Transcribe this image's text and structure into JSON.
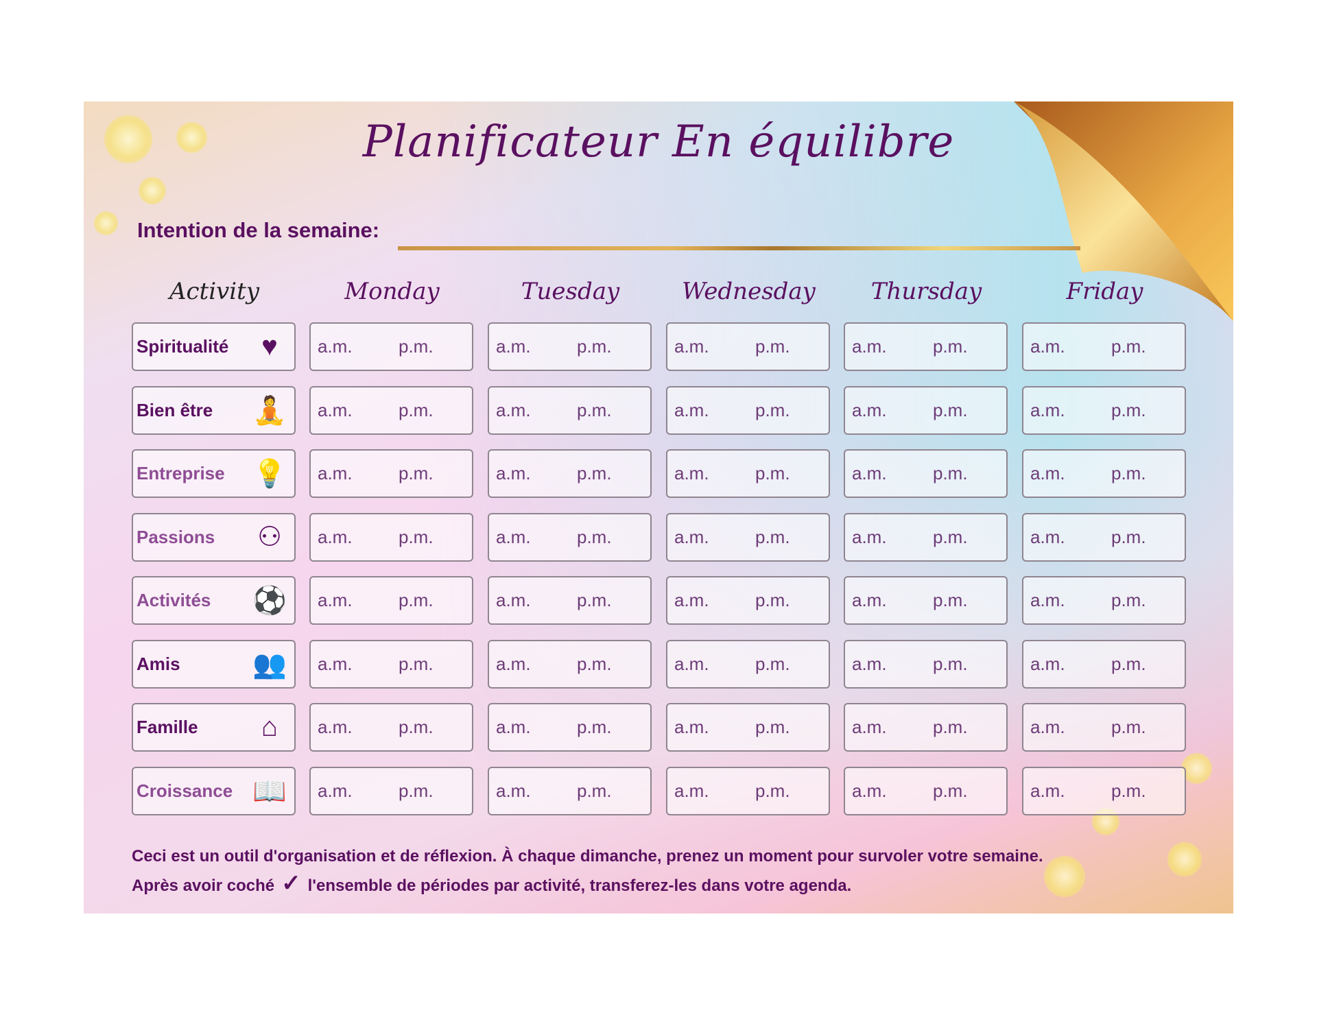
{
  "title": "Planificateur En équilibre",
  "intention_label": "Intention de la semaine:",
  "activity_header": "Activity",
  "days": [
    "Monday",
    "Tuesday",
    "Wednesday",
    "Thursday",
    "Friday"
  ],
  "am_label": "a.m.",
  "pm_label": "p.m.",
  "rows": [
    {
      "label": "Spiritualité",
      "icon": "heart-hands-icon",
      "glyph": "♥"
    },
    {
      "label": "Bien être",
      "icon": "yoga-pose-icon",
      "glyph": "🧘"
    },
    {
      "label": "Entreprise",
      "icon": "lightbulb-person-icon",
      "glyph": "💡"
    },
    {
      "label": "Passions",
      "icon": "interests-network-icon",
      "glyph": "⚇"
    },
    {
      "label": "Activités",
      "icon": "activities-circle-icon",
      "glyph": "⚽"
    },
    {
      "label": "Amis",
      "icon": "friends-group-icon",
      "glyph": "👥"
    },
    {
      "label": "Famille",
      "icon": "family-house-icon",
      "glyph": "⌂"
    },
    {
      "label": "Croissance",
      "icon": "open-book-icon",
      "glyph": "📖"
    }
  ],
  "footer": {
    "line1": "Ceci est un outil d'organisation et de réflexion. À chaque dimanche, prenez un moment pour survoler votre semaine.",
    "line2_before": "Après avoir coché",
    "check_glyph": "✓",
    "line2_after": "l'ensemble de périodes par activité, transferez-les dans votre agenda."
  },
  "colors": {
    "primary": "#5a1060",
    "gold": "#e2b35a",
    "teal": "#a0e6ee"
  }
}
